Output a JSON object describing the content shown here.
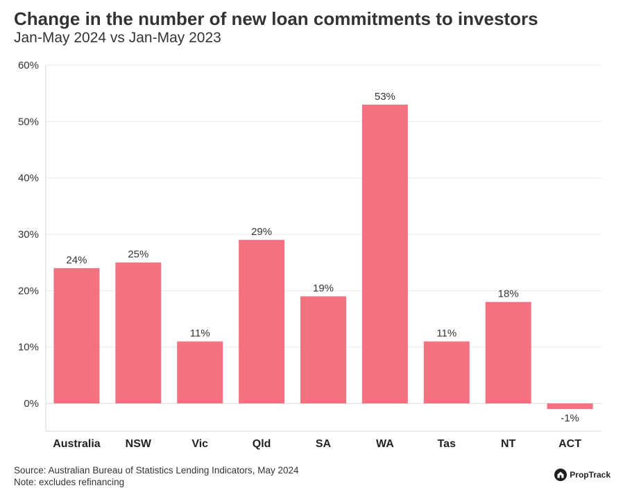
{
  "header": {
    "title": "Change in the number of new loan commitments to investors",
    "subtitle": "Jan-May 2024 vs Jan-May 2023"
  },
  "chart_data": {
    "type": "bar",
    "title": "Change in the number of new loan commitments to investors",
    "subtitle": "Jan-May 2024 vs Jan-May 2023",
    "categories": [
      "Australia",
      "NSW",
      "Vic",
      "Qld",
      "SA",
      "WA",
      "Tas",
      "NT",
      "ACT"
    ],
    "values": [
      24,
      25,
      11,
      29,
      19,
      53,
      11,
      18,
      -1
    ],
    "data_labels": [
      "24%",
      "25%",
      "11%",
      "29%",
      "19%",
      "53%",
      "11%",
      "18%",
      "-1%"
    ],
    "y_ticks": [
      0,
      10,
      20,
      30,
      40,
      50,
      60
    ],
    "y_tick_labels": [
      "0%",
      "10%",
      "20%",
      "30%",
      "40%",
      "50%",
      "60%"
    ],
    "ylim": [
      -5,
      60
    ],
    "xlabel": "",
    "ylabel": "",
    "grid": true,
    "legend": "none",
    "bar_color": "#f4727f"
  },
  "footer": {
    "source": "Source: Australian Bureau of Statistics Lending Indicators, May 2024",
    "note": "Note: excludes refinancing"
  },
  "brand": {
    "name": "PropTrack",
    "icon": "proptrack-logo-icon"
  }
}
